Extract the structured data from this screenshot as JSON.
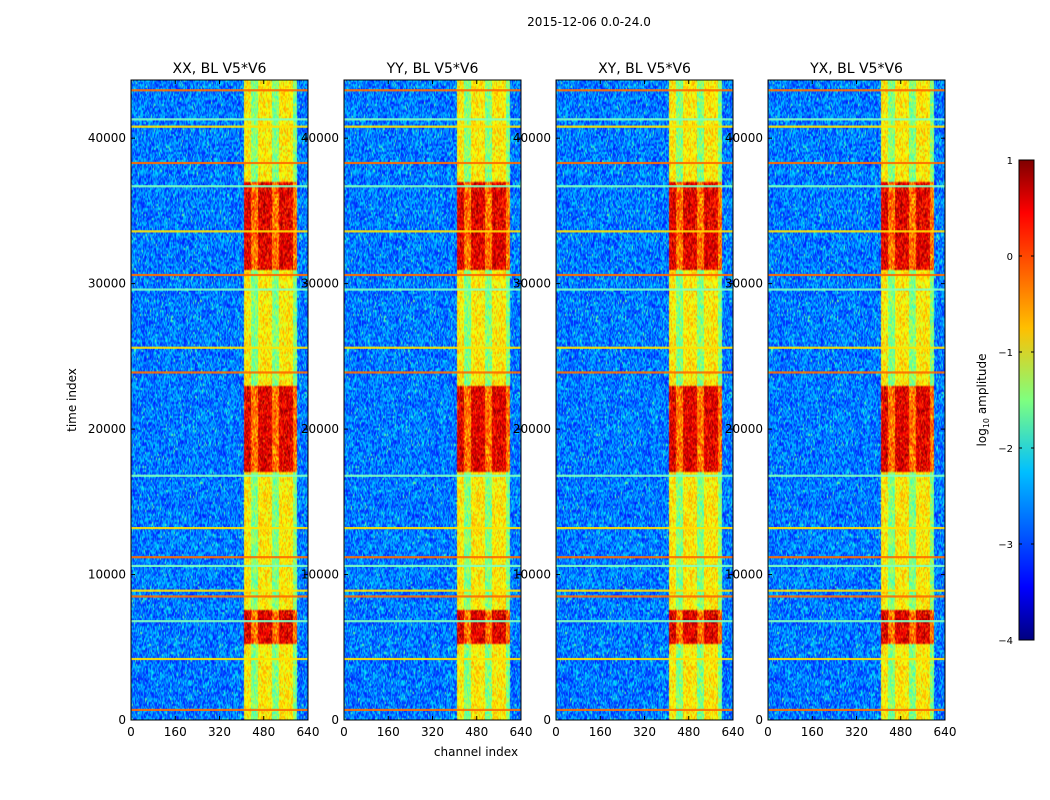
{
  "figure_title": "2015-12-06 0.0-24.0",
  "chart_data": {
    "type": "heatmap",
    "title": "2015-12-06 0.0-24.0",
    "xlabel": "channel index",
    "ylabel": "time index",
    "xlim": [
      0,
      640
    ],
    "ylim": [
      0,
      44000
    ],
    "x_ticks": [
      0,
      160,
      320,
      480,
      640
    ],
    "y_ticks": [
      0,
      10000,
      20000,
      30000,
      40000
    ],
    "x_tick_labels": [
      "0",
      "160",
      "320",
      "480",
      "640"
    ],
    "y_tick_labels": [
      "0",
      "10000",
      "20000",
      "30000",
      "40000"
    ],
    "panels": [
      {
        "title": "XX, BL V5*V6",
        "polarization": "XX",
        "baseline": "V5*V6"
      },
      {
        "title": "YY, BL V5*V6",
        "polarization": "YY",
        "baseline": "V5*V6"
      },
      {
        "title": "XY, BL V5*V6",
        "polarization": "XY",
        "baseline": "V5*V6"
      },
      {
        "title": "YX, BL V5*V6",
        "polarization": "YX",
        "baseline": "V5*V6"
      }
    ],
    "colorbar": {
      "label": "log10 amplitude",
      "label_main": "log",
      "label_sub": "10",
      "label_rest": " amplitude",
      "range": [
        -4,
        1
      ],
      "ticks": [
        1,
        0,
        -1,
        -2,
        -3,
        -4
      ],
      "tick_labels": [
        "1",
        "0",
        "−1",
        "−2",
        "−3",
        "−4"
      ],
      "colormap": "jet"
    },
    "strong_channel_band": [
      410,
      600
    ],
    "rfi_time_indices": [
      700,
      4200,
      6800,
      8500,
      8900,
      10600,
      11200,
      13200,
      16800,
      23900,
      25600,
      29600,
      30600,
      33600,
      36700,
      38300,
      40800,
      41300,
      43300
    ],
    "hot_time_intervals": [
      [
        5200,
        7500
      ],
      [
        17000,
        23000
      ],
      [
        31000,
        37000
      ]
    ]
  }
}
